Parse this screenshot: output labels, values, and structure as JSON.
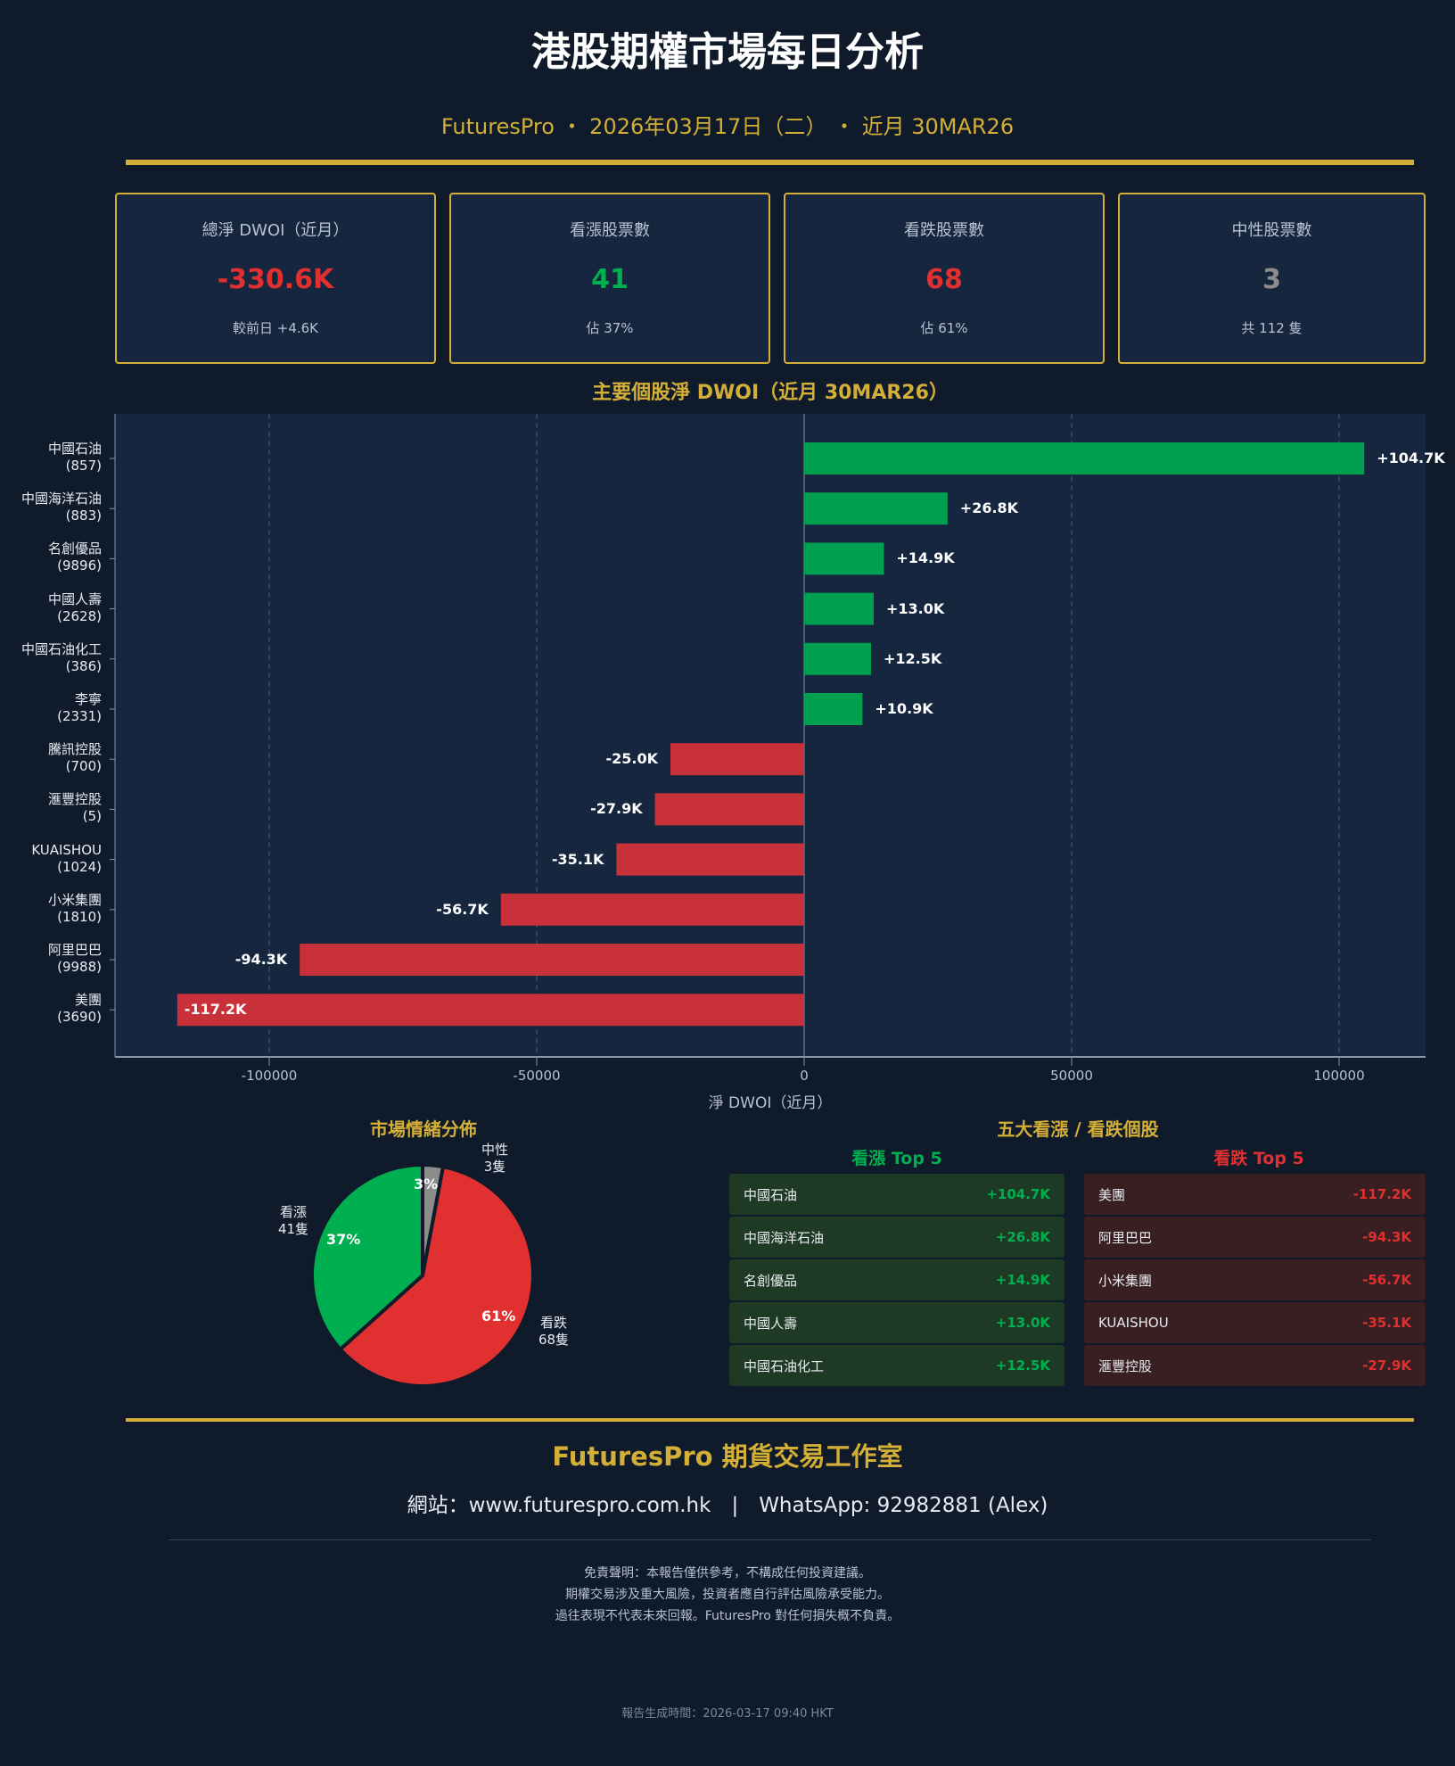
{
  "header": {
    "title": "港股期權市場每日分析",
    "subtitle": "FuturesPro ・ 2026年03月17日（二） ・ 近月 30MAR26"
  },
  "cards": [
    {
      "label": "總淨 DWOI（近月）",
      "value": "-330.6K",
      "note": "較前日 +4.6K",
      "color": "#e03030"
    },
    {
      "label": "看漲股票數",
      "value": "41",
      "note": "佔 37%",
      "color": "#00b050"
    },
    {
      "label": "看跌股票數",
      "value": "68",
      "note": "佔 61%",
      "color": "#e03030"
    },
    {
      "label": "中性股票數",
      "value": "3",
      "note": "共 112 隻",
      "color": "#8c8c8c"
    }
  ],
  "colors": {
    "positive": "#00a050",
    "negative": "#c9313a",
    "gold": "#d4af37"
  },
  "chart_data": [
    {
      "type": "bar",
      "orientation": "horizontal",
      "title": "主要個股淨 DWOI（近月 30MAR26）",
      "xlabel": "淨 DWOI（近月）",
      "xlim": [
        -130000,
        115000
      ],
      "xticks": [
        -100000,
        -50000,
        0,
        50000,
        100000
      ],
      "categories": [
        {
          "name": "中國石油",
          "code": "(857)"
        },
        {
          "name": "中國海洋石油",
          "code": "(883)"
        },
        {
          "name": "名創優品",
          "code": "(9896)"
        },
        {
          "name": "中國人壽",
          "code": "(2628)"
        },
        {
          "name": "中國石油化工",
          "code": "(386)"
        },
        {
          "name": "李寧",
          "code": "(2331)"
        },
        {
          "name": "騰訊控股",
          "code": "(700)"
        },
        {
          "name": "滙豐控股",
          "code": "(5)"
        },
        {
          "name": "KUAISHOU",
          "code": "(1024)"
        },
        {
          "name": "小米集團",
          "code": "(1810)"
        },
        {
          "name": "阿里巴巴",
          "code": "(9988)"
        },
        {
          "name": "美團",
          "code": "(3690)"
        }
      ],
      "values": [
        104700,
        26800,
        14900,
        13000,
        12500,
        10900,
        -25000,
        -27900,
        -35100,
        -56700,
        -94300,
        -117200
      ],
      "labels": [
        "+104.7K",
        "+26.8K",
        "+14.9K",
        "+13.0K",
        "+12.5K",
        "+10.9K",
        "-25.0K",
        "-27.9K",
        "-35.1K",
        "-56.7K",
        "-94.3K",
        "-117.2K"
      ]
    },
    {
      "type": "pie",
      "title": "市場情緒分佈",
      "slices": [
        {
          "name": "中性",
          "count": "3隻",
          "value": 3,
          "pct": "3%",
          "color": "#8c8c8c"
        },
        {
          "name": "看跌",
          "count": "68隻",
          "value": 61,
          "pct": "61%",
          "color": "#e03030"
        },
        {
          "name": "看漲",
          "count": "41隻",
          "value": 37,
          "pct": "37%",
          "color": "#00b050"
        }
      ]
    }
  ],
  "top": {
    "title": "五大看漲 / 看跌個股",
    "bull_title": "看漲 Top 5",
    "bear_title": "看跌 Top 5",
    "bull": [
      {
        "name": "中國石油",
        "value": "+104.7K"
      },
      {
        "name": "中國海洋石油",
        "value": "+26.8K"
      },
      {
        "name": "名創優品",
        "value": "+14.9K"
      },
      {
        "name": "中國人壽",
        "value": "+13.0K"
      },
      {
        "name": "中國石油化工",
        "value": "+12.5K"
      }
    ],
    "bear": [
      {
        "name": "美團",
        "value": "-117.2K"
      },
      {
        "name": "阿里巴巴",
        "value": "-94.3K"
      },
      {
        "name": "小米集團",
        "value": "-56.7K"
      },
      {
        "name": "KUAISHOU",
        "value": "-35.1K"
      },
      {
        "name": "滙豐控股",
        "value": "-27.9K"
      }
    ]
  },
  "footer": {
    "brand": "FuturesPro 期貨交易工作室",
    "contact": "網站：www.futurespro.com.hk　|　WhatsApp: 92982881 (Alex)",
    "disclaimer": [
      "免責聲明：本報告僅供參考，不構成任何投資建議。",
      "期權交易涉及重大風險，投資者應自行評估風險承受能力。",
      "過往表現不代表未來回報。FuturesPro 對任何損失概不負責。"
    ],
    "generated": "報告生成時間：2026-03-17 09:40 HKT"
  }
}
